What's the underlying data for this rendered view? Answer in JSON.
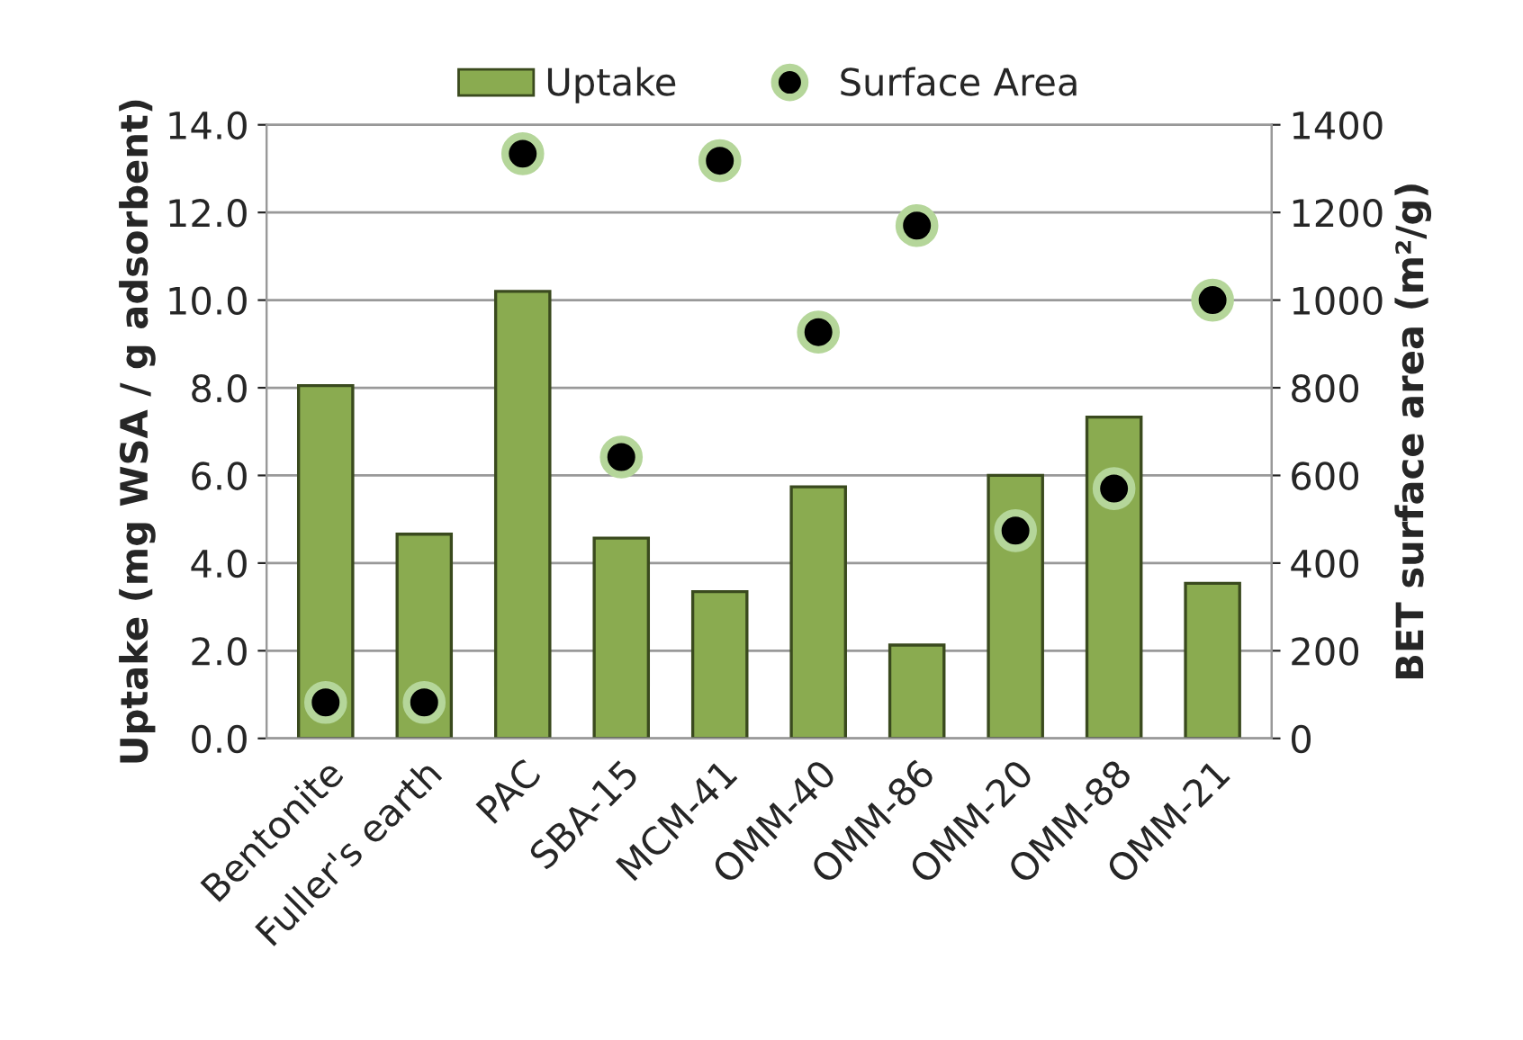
{
  "chart_data": {
    "type": "bar",
    "categories": [
      "Bentonite",
      "Fuller's earth",
      "PAC",
      "SBA-15",
      "MCM-41",
      "OMM-40",
      "OMM-86",
      "OMM-20",
      "OMM-88",
      "OMM-21"
    ],
    "series": [
      {
        "name": "Uptake",
        "color": "#8aab50",
        "values": [
          8.05,
          4.66,
          10.2,
          4.57,
          3.35,
          5.74,
          2.13,
          6.0,
          7.33,
          3.54
        ]
      },
      {
        "name": "Surface Area",
        "type": "scatter",
        "axis": "y2",
        "color": "#000000",
        "values": [
          82,
          82,
          1334,
          642,
          1318,
          927,
          1170,
          474,
          570,
          1000
        ]
      }
    ],
    "ylabel": "Uptake (mg WSA / g adsorbent)",
    "y2label": "BET surface area (m²/g)",
    "ylim": [
      0,
      14
    ],
    "yticks": [
      {
        "value": 0,
        "label": "0.0"
      },
      {
        "value": 2,
        "label": "2.0"
      },
      {
        "value": 4,
        "label": "4.0"
      },
      {
        "value": 6,
        "label": "6.0"
      },
      {
        "value": 8,
        "label": "8.0"
      },
      {
        "value": 10,
        "label": "10.0"
      },
      {
        "value": 12,
        "label": "12.0"
      },
      {
        "value": 14,
        "label": "14.0"
      }
    ],
    "y2lim": [
      0,
      1400
    ],
    "y2ticks": [
      0,
      200,
      400,
      600,
      800,
      1000,
      1200,
      1400
    ],
    "grid": "y",
    "legend": "top",
    "marker": "circle"
  }
}
